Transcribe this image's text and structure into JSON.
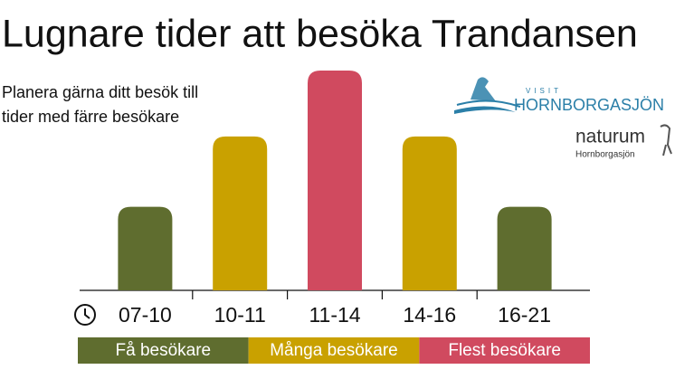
{
  "chart_data": {
    "type": "bar",
    "title": "Lugnare tider att besöka Trandansen",
    "subtitle": [
      "Planera gärna ditt besök till",
      "tider med färre besökare"
    ],
    "categories": [
      "07-10",
      "10-11",
      "11-14",
      "14-16",
      "16-21"
    ],
    "values": [
      38,
      70,
      100,
      70,
      38
    ],
    "colors": [
      "#5f6d2f",
      "#c9a100",
      "#d04a5f",
      "#c9a100",
      "#5f6d2f"
    ],
    "ylim": [
      0,
      100
    ],
    "legend": [
      {
        "label": "Få besökare",
        "color": "#5f6d2f"
      },
      {
        "label": "Många besökare",
        "color": "#c9a100"
      },
      {
        "label": "Flest besökare",
        "color": "#d04a5f"
      }
    ],
    "logos": {
      "visit_small": "VISIT",
      "visit_name": "HORNBORGASJÖN",
      "naturum": "naturum",
      "naturum_place": "Hornborgasjön"
    }
  }
}
